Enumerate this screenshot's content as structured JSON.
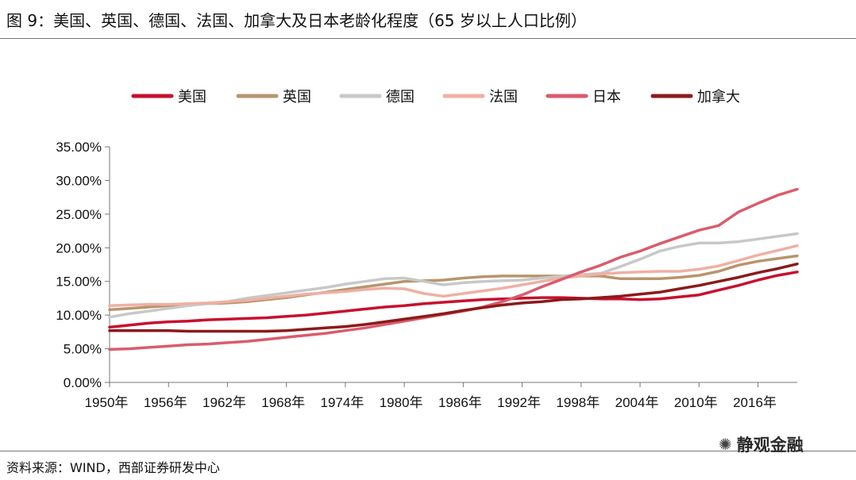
{
  "header": {
    "title": "图 9：美国、英国、德国、法国、加拿大及日本老龄化程度（65 岁以上人口比例）"
  },
  "footer": {
    "source": "资料来源：WIND，西部证券研发中心"
  },
  "watermark": {
    "text": "静观金融",
    "icon": "wechat-icon",
    "glyph": "✺"
  },
  "chart_data": {
    "type": "line",
    "title": "",
    "xlabel": "",
    "ylabel": "",
    "x": [
      1950,
      1952,
      1954,
      1956,
      1958,
      1960,
      1962,
      1964,
      1966,
      1968,
      1970,
      1972,
      1974,
      1976,
      1978,
      1980,
      1982,
      1984,
      1986,
      1988,
      1990,
      1992,
      1994,
      1996,
      1998,
      2000,
      2002,
      2004,
      2006,
      2008,
      2010,
      2012,
      2014,
      2016,
      2018,
      2020
    ],
    "xlim": [
      1950,
      2020
    ],
    "ylim": [
      0,
      35
    ],
    "yticks": [
      0,
      5,
      10,
      15,
      20,
      25,
      30,
      35
    ],
    "ytick_labels": [
      "0.00%",
      "5.00%",
      "10.00%",
      "15.00%",
      "20.00%",
      "25.00%",
      "30.00%",
      "35.00%"
    ],
    "xtick_values": [
      1950,
      1956,
      1962,
      1968,
      1974,
      1980,
      1986,
      1992,
      1998,
      2004,
      2010,
      2016
    ],
    "xtick_labels": [
      "1950年",
      "1956年",
      "1962年",
      "1968年",
      "1974年",
      "1980年",
      "1986年",
      "1992年",
      "1998年",
      "2004年",
      "2010年",
      "2016年"
    ],
    "grid": false,
    "legend_position": "top",
    "series": [
      {
        "name": "美国",
        "color": "#c8102e",
        "values": [
          8.2,
          8.5,
          8.8,
          9.0,
          9.1,
          9.3,
          9.4,
          9.5,
          9.6,
          9.8,
          10.0,
          10.3,
          10.6,
          10.9,
          11.2,
          11.4,
          11.7,
          11.9,
          12.1,
          12.3,
          12.4,
          12.5,
          12.6,
          12.6,
          12.5,
          12.4,
          12.4,
          12.3,
          12.4,
          12.7,
          13.0,
          13.7,
          14.4,
          15.2,
          15.9,
          16.4
        ]
      },
      {
        "name": "英国",
        "color": "#b8956c",
        "values": [
          10.8,
          11.0,
          11.2,
          11.4,
          11.6,
          11.7,
          11.8,
          12.0,
          12.3,
          12.6,
          13.0,
          13.4,
          13.8,
          14.2,
          14.6,
          15.0,
          15.1,
          15.2,
          15.5,
          15.7,
          15.8,
          15.8,
          15.8,
          15.8,
          15.8,
          15.8,
          15.4,
          15.4,
          15.4,
          15.6,
          15.9,
          16.5,
          17.4,
          18.0,
          18.4,
          18.8
        ]
      },
      {
        "name": "德国",
        "color": "#c8c8c8",
        "values": [
          9.7,
          10.2,
          10.6,
          11.0,
          11.4,
          11.7,
          12.0,
          12.5,
          12.9,
          13.3,
          13.7,
          14.1,
          14.6,
          15.0,
          15.4,
          15.5,
          15.0,
          14.5,
          14.8,
          15.0,
          15.1,
          15.2,
          15.5,
          15.8,
          16.0,
          16.2,
          17.2,
          18.3,
          19.5,
          20.2,
          20.7,
          20.7,
          20.9,
          21.3,
          21.7,
          22.1
        ]
      },
      {
        "name": "法国",
        "color": "#eeb0a4",
        "values": [
          11.4,
          11.5,
          11.6,
          11.6,
          11.7,
          11.8,
          12.0,
          12.2,
          12.5,
          12.8,
          13.1,
          13.3,
          13.5,
          13.8,
          14.0,
          13.9,
          13.2,
          12.8,
          13.2,
          13.6,
          14.0,
          14.5,
          15.0,
          15.5,
          15.8,
          16.1,
          16.3,
          16.4,
          16.5,
          16.5,
          16.8,
          17.3,
          18.1,
          18.9,
          19.6,
          20.3
        ]
      },
      {
        "name": "日本",
        "color": "#d95c6c",
        "values": [
          4.9,
          5.0,
          5.2,
          5.4,
          5.6,
          5.7,
          5.9,
          6.1,
          6.4,
          6.7,
          7.0,
          7.3,
          7.7,
          8.1,
          8.6,
          9.1,
          9.6,
          10.1,
          10.6,
          11.2,
          12.0,
          13.0,
          14.2,
          15.3,
          16.4,
          17.4,
          18.6,
          19.5,
          20.6,
          21.6,
          22.6,
          23.3,
          25.3,
          26.6,
          27.8,
          28.7
        ]
      },
      {
        "name": "加拿大",
        "color": "#8b1a1a",
        "values": [
          7.7,
          7.7,
          7.7,
          7.7,
          7.6,
          7.6,
          7.6,
          7.6,
          7.6,
          7.7,
          7.9,
          8.1,
          8.3,
          8.6,
          9.0,
          9.4,
          9.8,
          10.2,
          10.7,
          11.1,
          11.5,
          11.8,
          12.0,
          12.3,
          12.4,
          12.6,
          12.8,
          13.1,
          13.4,
          13.9,
          14.4,
          15.0,
          15.6,
          16.3,
          16.9,
          17.6
        ]
      }
    ]
  }
}
